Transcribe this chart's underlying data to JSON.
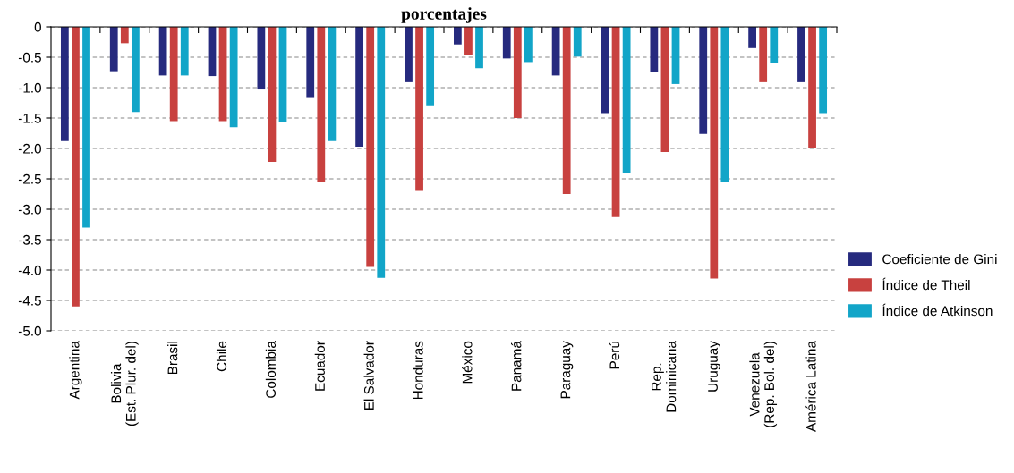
{
  "chart_data": {
    "type": "bar",
    "title": "porcentajes",
    "categories": [
      "Argentina",
      "Bolivia\n(Est. Plur. del)",
      "Brasil",
      "Chile",
      "Colombia",
      "Ecuador",
      "El Salvador",
      "Honduras",
      "México",
      "Panamá",
      "Paraguay",
      "Perú",
      "Rep.\nDominicana",
      "Uruguay",
      "Venezuela\n(Rep. Bol. del)",
      "América Latina"
    ],
    "series": [
      {
        "name": "Coeficiente de Gini",
        "color": "#262a7e",
        "values": [
          -1.88,
          -0.73,
          -0.8,
          -0.81,
          -1.03,
          -1.17,
          -1.97,
          -0.91,
          -0.29,
          -0.52,
          -0.8,
          -1.42,
          -0.74,
          -1.76,
          -0.35,
          -0.91
        ]
      },
      {
        "name": "Índice de Theil",
        "color": "#c8413f",
        "values": [
          -4.6,
          -0.27,
          -1.55,
          -1.55,
          -2.22,
          -2.55,
          -3.95,
          -2.7,
          -0.47,
          -1.5,
          -2.75,
          -3.13,
          -2.06,
          -4.14,
          -0.91,
          -2.0
        ]
      },
      {
        "name": "Índice de Atkinson",
        "color": "#12a5c8",
        "values": [
          -3.3,
          -1.4,
          -0.8,
          -1.65,
          -1.57,
          -1.88,
          -4.13,
          -1.29,
          -0.68,
          -0.58,
          -0.49,
          -2.4,
          -0.94,
          -2.56,
          -0.6,
          -1.42
        ]
      }
    ],
    "ylim": [
      -5.0,
      0
    ],
    "yticks": [
      {
        "value": -5.0,
        "label": "-5.0"
      },
      {
        "value": -4.5,
        "label": "-4.5"
      },
      {
        "value": -4.0,
        "label": "-4.0"
      },
      {
        "value": -3.5,
        "label": "-3.5"
      },
      {
        "value": -3.0,
        "label": "-3.0"
      },
      {
        "value": -2.5,
        "label": "-2.5"
      },
      {
        "value": -2.0,
        "label": "-2.0"
      },
      {
        "value": -1.5,
        "label": "-1.5"
      },
      {
        "value": -1.0,
        "label": "-1.0"
      },
      {
        "value": -0.5,
        "label": "-0.5"
      },
      0
    ],
    "grid": "y",
    "legend": "right"
  }
}
